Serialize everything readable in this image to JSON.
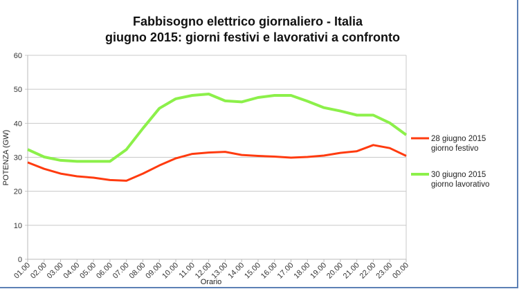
{
  "chart_data": {
    "type": "line",
    "title": "Fabbisogno elettrico giornaliero - Italia",
    "subtitle": "giugno 2015: giorni festivi e lavorativi a confronto",
    "xlabel": "Orario",
    "ylabel": "POTENZA (GW)",
    "ylim": [
      0,
      60
    ],
    "yticks": [
      0,
      10,
      20,
      30,
      40,
      50,
      60
    ],
    "grid": true,
    "legend_position": "right",
    "categories": [
      "01.00",
      "02.00",
      "03.00",
      "04.00",
      "05.00",
      "06.00",
      "07.00",
      "08.00",
      "09.00",
      "10.00",
      "11.00",
      "12.00",
      "13.00",
      "14.00",
      "15.00",
      "16.00",
      "17.00",
      "18.00",
      "19.00",
      "20.00",
      "21.00",
      "22.00",
      "23.00",
      "00.00"
    ],
    "series": [
      {
        "name": "28 giugno 2015",
        "name_line2": "giorno festivo",
        "color": "#ff3b0f",
        "values": [
          28.5,
          26.6,
          25.2,
          24.4,
          24.0,
          23.3,
          23.1,
          25.2,
          27.6,
          29.7,
          31.0,
          31.4,
          31.6,
          30.7,
          30.4,
          30.2,
          29.9,
          30.1,
          30.5,
          31.3,
          31.8,
          33.6,
          32.7,
          30.4
        ]
      },
      {
        "name": "30 giugno 2015",
        "name_line2": "giorno lavorativo",
        "color": "#8cf04a",
        "values": [
          32.3,
          30.1,
          29.1,
          28.8,
          28.8,
          28.8,
          32.3,
          38.5,
          44.4,
          47.2,
          48.2,
          48.6,
          46.6,
          46.3,
          47.6,
          48.2,
          48.2,
          46.5,
          44.6,
          43.6,
          42.4,
          42.4,
          40.1,
          36.6
        ]
      }
    ]
  }
}
